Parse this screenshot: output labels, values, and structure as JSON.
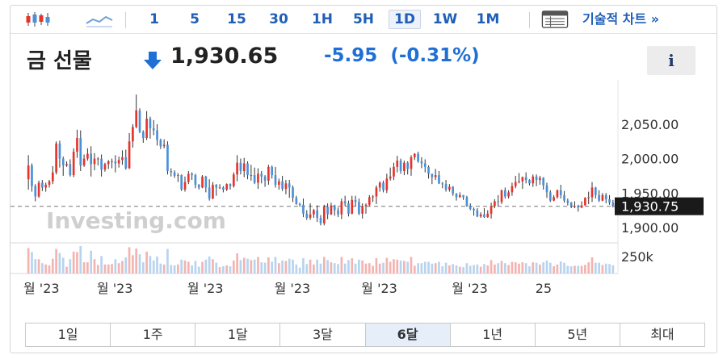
{
  "toolbar": {
    "chart_icon": "candlestick-icon",
    "area_icon": "area-chart-icon",
    "timeframes": [
      {
        "label": "1",
        "active": false
      },
      {
        "label": "5",
        "active": false
      },
      {
        "label": "15",
        "active": false
      },
      {
        "label": "30",
        "active": false
      },
      {
        "label": "1H",
        "active": false
      },
      {
        "label": "5H",
        "active": false
      },
      {
        "label": "1D",
        "active": true
      },
      {
        "label": "1W",
        "active": false
      },
      {
        "label": "1M",
        "active": false
      }
    ],
    "tech_icon": "table-icon",
    "tech_label": "기술적 차트 »"
  },
  "header": {
    "instrument": "금 선물",
    "price": "1,930.65",
    "change": "-5.95",
    "change_pct": "(-0.31%)",
    "info_label": "i"
  },
  "colors": {
    "up": "#e8332a",
    "down": "#4a90d9",
    "wick": "#333333",
    "text": "#333333",
    "accent": "#1f5fb8"
  },
  "chart_data": {
    "type": "candlestick",
    "watermark": "Investing.com",
    "y_ticks": [
      "2,050.00",
      "2,000.00",
      "1,950.00",
      "1,900.00"
    ],
    "y_tick_values": [
      2050,
      2000,
      1950,
      1900
    ],
    "ylim": [
      1880,
      2105
    ],
    "current_label": "1,930.75",
    "current_value": 1930.75,
    "volume_tick": "250k",
    "x_tick_labels": [
      "월 '23",
      "월 '23",
      "월 '23",
      "월 '23",
      "월 '23",
      "월 '23",
      "25"
    ],
    "x_tick_index": [
      0,
      22,
      48,
      73,
      98,
      124,
      148
    ],
    "candles": [
      [
        1970.0,
        1990.0,
        1955.0,
        2005.0
      ],
      [
        1990.0,
        1960.0,
        1952.0,
        1993.0
      ],
      [
        1960.0,
        1945.0,
        1938.0,
        1963.0
      ],
      [
        1945.0,
        1965.0,
        1943.0,
        1968.0
      ],
      [
        1965.0,
        1958.0,
        1953.0,
        1969.0
      ],
      [
        1958.0,
        1962.0,
        1952.0,
        1965.0
      ],
      [
        1962.0,
        1967.0,
        1958.0,
        1969.0
      ],
      [
        1967.0,
        1980.0,
        1963.0,
        1989.0
      ],
      [
        1980.0,
        2022.0,
        1977.0,
        2025.0
      ],
      [
        2022.0,
        2000.0,
        1987.0,
        2026.0
      ],
      [
        2000.0,
        1990.0,
        1975.0,
        2003.0
      ],
      [
        1990.0,
        1992.0,
        1988.0,
        1996.0
      ],
      [
        1992.0,
        1976.0,
        1974.0,
        1999.0
      ],
      [
        1976.0,
        2010.0,
        1973.0,
        2015.0
      ],
      [
        2010.0,
        2030.0,
        2001.0,
        2042.0
      ],
      [
        2030.0,
        1990.0,
        1982.0,
        2041.0
      ],
      [
        1990.0,
        2000.0,
        1988.0,
        2006.0
      ],
      [
        2000.0,
        2007.0,
        1997.0,
        2015.0
      ],
      [
        2007.0,
        1992.0,
        1974.0,
        2018.0
      ],
      [
        1992.0,
        2000.0,
        1983.0,
        2008.0
      ],
      [
        2000.0,
        2000.0,
        1990.0,
        2002.0
      ],
      [
        2000.0,
        1984.0,
        1974.0,
        2006.0
      ],
      [
        1984.0,
        1992.0,
        1981.0,
        1994.0
      ],
      [
        1992.0,
        1996.0,
        1985.0,
        1998.0
      ],
      [
        1996.0,
        1996.0,
        1986.0,
        2000.0
      ],
      [
        1996.0,
        1993.0,
        1980.0,
        2005.0
      ],
      [
        1993.0,
        1998.0,
        1987.0,
        2003.0
      ],
      [
        1998.0,
        2002.0,
        1991.0,
        2012.0
      ],
      [
        2002.0,
        1986.0,
        1984.0,
        2013.0
      ],
      [
        1986.0,
        2025.0,
        1985.0,
        2037.0
      ],
      [
        2025.0,
        2046.0,
        2016.0,
        2050.0
      ],
      [
        2046.0,
        2070.0,
        2044.0,
        2093.0
      ],
      [
        2070.0,
        2039.0,
        2037.0,
        2073.0
      ],
      [
        2039.0,
        2030.0,
        2023.0,
        2041.0
      ],
      [
        2030.0,
        2058.0,
        2027.0,
        2069.0
      ],
      [
        2058.0,
        2044.0,
        2029.0,
        2061.0
      ],
      [
        2044.0,
        2041.0,
        2034.0,
        2056.0
      ],
      [
        2041.0,
        2027.0,
        2019.0,
        2050.0
      ],
      [
        2027.0,
        2018.0,
        2014.0,
        2029.0
      ],
      [
        2018.0,
        2020.0,
        2015.0,
        2028.0
      ],
      [
        2020.0,
        1982.0,
        1977.0,
        2025.0
      ],
      [
        1982.0,
        1980.0,
        1974.0,
        1986.0
      ],
      [
        1980.0,
        1975.0,
        1972.0,
        1983.0
      ],
      [
        1975.0,
        1976.0,
        1966.0,
        1979.0
      ],
      [
        1976.0,
        1955.0,
        1953.0,
        1977.0
      ],
      [
        1955.0,
        1966.0,
        1952.0,
        1974.0
      ],
      [
        1966.0,
        1978.0,
        1963.0,
        1982.0
      ],
      [
        1978.0,
        1976.0,
        1969.0,
        1980.0
      ],
      [
        1976.0,
        1962.0,
        1957.0,
        1978.0
      ],
      [
        1962.0,
        1958.0,
        1955.0,
        1963.0
      ],
      [
        1958.0,
        1974.0,
        1957.0,
        1976.0
      ],
      [
        1974.0,
        1958.0,
        1951.0,
        1975.0
      ],
      [
        1958.0,
        1942.0,
        1939.0,
        1970.0
      ],
      [
        1942.0,
        1962.0,
        1941.0,
        1966.0
      ],
      [
        1962.0,
        1958.0,
        1946.0,
        1963.0
      ],
      [
        1958.0,
        1958.0,
        1956.0,
        1963.0
      ],
      [
        1958.0,
        1955.0,
        1951.0,
        1960.0
      ],
      [
        1955.0,
        1963.0,
        1953.0,
        1964.0
      ],
      [
        1963.0,
        1960.0,
        1955.0,
        1964.0
      ],
      [
        1960.0,
        1977.0,
        1958.0,
        1980.0
      ],
      [
        1977.0,
        1994.0,
        1967.0,
        2005.0
      ],
      [
        1994.0,
        1982.0,
        1977.0,
        2000.0
      ],
      [
        1982.0,
        1993.0,
        1973.0,
        2001.0
      ],
      [
        1993.0,
        1976.0,
        1970.0,
        1996.0
      ],
      [
        1976.0,
        1976.0,
        1968.0,
        1991.0
      ],
      [
        1976.0,
        1965.0,
        1963.0,
        1987.0
      ],
      [
        1965.0,
        1978.0,
        1956.0,
        1986.0
      ],
      [
        1978.0,
        1974.0,
        1964.0,
        1982.0
      ],
      [
        1974.0,
        1968.0,
        1959.0,
        1976.0
      ],
      [
        1968.0,
        1988.0,
        1962.0,
        1991.0
      ],
      [
        1988.0,
        1976.0,
        1971.0,
        1990.0
      ],
      [
        1976.0,
        1962.0,
        1958.0,
        1988.0
      ],
      [
        1962.0,
        1967.0,
        1955.0,
        1971.0
      ],
      [
        1967.0,
        1956.0,
        1953.0,
        1975.0
      ],
      [
        1956.0,
        1964.0,
        1948.0,
        1969.0
      ],
      [
        1964.0,
        1958.0,
        1943.0,
        1969.0
      ],
      [
        1958.0,
        1943.0,
        1937.0,
        1961.0
      ],
      [
        1943.0,
        1934.0,
        1933.0,
        1946.0
      ],
      [
        1934.0,
        1933.0,
        1930.0,
        1936.0
      ],
      [
        1933.0,
        1920.0,
        1915.0,
        1942.0
      ],
      [
        1920.0,
        1914.0,
        1911.0,
        1925.0
      ],
      [
        1914.0,
        1919.0,
        1911.0,
        1935.0
      ],
      [
        1919.0,
        1925.0,
        1914.0,
        1927.0
      ],
      [
        1925.0,
        1914.0,
        1908.0,
        1932.0
      ],
      [
        1914.0,
        1906.0,
        1903.0,
        1918.0
      ],
      [
        1906.0,
        1930.0,
        1903.0,
        1933.0
      ],
      [
        1930.0,
        1919.0,
        1912.0,
        1935.0
      ],
      [
        1919.0,
        1932.0,
        1918.0,
        1936.0
      ],
      [
        1932.0,
        1925.0,
        1917.0,
        1933.0
      ],
      [
        1925.0,
        1919.0,
        1915.0,
        1929.0
      ],
      [
        1919.0,
        1938.0,
        1912.0,
        1942.0
      ],
      [
        1938.0,
        1935.0,
        1931.0,
        1946.0
      ],
      [
        1935.0,
        1920.0,
        1916.0,
        1939.0
      ],
      [
        1920.0,
        1940.0,
        1919.0,
        1946.0
      ],
      [
        1940.0,
        1937.0,
        1931.0,
        1946.0
      ],
      [
        1937.0,
        1920.0,
        1918.0,
        1942.0
      ],
      [
        1920.0,
        1931.0,
        1913.0,
        1935.0
      ],
      [
        1931.0,
        1933.0,
        1920.0,
        1935.0
      ],
      [
        1933.0,
        1944.0,
        1931.0,
        1947.0
      ],
      [
        1944.0,
        1945.0,
        1937.0,
        1947.0
      ],
      [
        1945.0,
        1958.0,
        1934.0,
        1961.0
      ],
      [
        1958.0,
        1965.0,
        1952.0,
        1967.0
      ],
      [
        1965.0,
        1954.0,
        1951.0,
        1968.0
      ],
      [
        1954.0,
        1971.0,
        1950.0,
        1978.0
      ],
      [
        1971.0,
        1974.0,
        1968.0,
        1987.0
      ],
      [
        1974.0,
        1988.0,
        1969.0,
        1994.0
      ],
      [
        1988.0,
        1997.0,
        1980.0,
        2004.0
      ],
      [
        1997.0,
        1982.0,
        1978.0,
        2000.0
      ],
      [
        1982.0,
        1994.0,
        1976.0,
        1997.0
      ],
      [
        1994.0,
        1985.0,
        1977.0,
        1996.0
      ],
      [
        1985.0,
        2002.0,
        1975.0,
        2005.0
      ],
      [
        2002.0,
        2007.0,
        1998.0,
        2008.0
      ],
      [
        2007.0,
        1996.0,
        1994.0,
        2010.0
      ],
      [
        1996.0,
        1993.0,
        1986.0,
        2002.0
      ],
      [
        1993.0,
        1988.0,
        1980.0,
        1999.0
      ],
      [
        1988.0,
        1978.0,
        1971.0,
        1990.0
      ],
      [
        1978.0,
        1973.0,
        1963.0,
        1978.0
      ],
      [
        1973.0,
        1976.0,
        1969.0,
        1985.0
      ],
      [
        1976.0,
        1964.0,
        1963.0,
        1982.0
      ],
      [
        1964.0,
        1963.0,
        1957.0,
        1966.0
      ],
      [
        1963.0,
        1955.0,
        1952.0,
        1969.0
      ],
      [
        1955.0,
        1959.0,
        1952.0,
        1963.0
      ],
      [
        1959.0,
        1949.0,
        1946.0,
        1960.0
      ],
      [
        1949.0,
        1944.0,
        1939.0,
        1950.0
      ],
      [
        1944.0,
        1947.0,
        1943.0,
        1951.0
      ],
      [
        1947.0,
        1944.0,
        1940.0,
        1947.0
      ],
      [
        1944.0,
        1931.0,
        1930.0,
        1946.0
      ],
      [
        1931.0,
        1927.0,
        1925.0,
        1935.0
      ],
      [
        1927.0,
        1925.0,
        1917.0,
        1929.0
      ],
      [
        1925.0,
        1916.0,
        1915.0,
        1928.0
      ],
      [
        1916.0,
        1919.0,
        1914.0,
        1922.0
      ],
      [
        1919.0,
        1915.0,
        1914.0,
        1928.0
      ],
      [
        1915.0,
        1920.0,
        1914.0,
        1925.0
      ],
      [
        1920.0,
        1931.0,
        1913.0,
        1936.0
      ],
      [
        1931.0,
        1938.0,
        1928.0,
        1941.0
      ],
      [
        1938.0,
        1937.0,
        1931.0,
        1947.0
      ],
      [
        1937.0,
        1954.0,
        1934.0,
        1955.0
      ],
      [
        1954.0,
        1945.0,
        1942.0,
        1958.0
      ],
      [
        1945.0,
        1951.0,
        1942.0,
        1954.0
      ],
      [
        1951.0,
        1960.0,
        1946.0,
        1965.0
      ],
      [
        1960.0,
        1966.0,
        1957.0,
        1975.0
      ],
      [
        1966.0,
        1967.0,
        1964.0,
        1979.0
      ],
      [
        1967.0,
        1973.0,
        1956.0,
        1974.0
      ],
      [
        1973.0,
        1969.0,
        1964.0,
        1980.0
      ],
      [
        1969.0,
        1964.0,
        1961.0,
        1970.0
      ],
      [
        1964.0,
        1974.0,
        1959.0,
        1977.0
      ],
      [
        1974.0,
        1969.0,
        1960.0,
        1977.0
      ],
      [
        1969.0,
        1972.0,
        1962.0,
        1975.0
      ],
      [
        1972.0,
        1961.0,
        1955.0,
        1973.0
      ],
      [
        1961.0,
        1951.0,
        1943.0,
        1965.0
      ],
      [
        1951.0,
        1939.0,
        1937.0,
        1954.0
      ],
      [
        1939.0,
        1944.0,
        1938.0,
        1947.0
      ],
      [
        1944.0,
        1954.0,
        1942.0,
        1955.0
      ],
      [
        1954.0,
        1947.0,
        1942.0,
        1962.0
      ],
      [
        1947.0,
        1939.0,
        1936.0,
        1953.0
      ],
      [
        1939.0,
        1936.0,
        1932.0,
        1942.0
      ],
      [
        1936.0,
        1931.0,
        1928.0,
        1937.0
      ],
      [
        1931.0,
        1931.0,
        1928.0,
        1938.0
      ],
      [
        1931.0,
        1929.0,
        1923.0,
        1933.0
      ],
      [
        1929.0,
        1932.0,
        1928.0,
        1938.0
      ],
      [
        1932.0,
        1943.0,
        1932.0,
        1944.0
      ],
      [
        1943.0,
        1944.0,
        1934.0,
        1952.0
      ],
      [
        1944.0,
        1958.0,
        1937.0,
        1966.0
      ],
      [
        1958.0,
        1947.0,
        1942.0,
        1959.0
      ],
      [
        1947.0,
        1939.0,
        1937.0,
        1954.0
      ],
      [
        1939.0,
        1947.0,
        1938.0,
        1950.0
      ],
      [
        1947.0,
        1941.0,
        1935.0,
        1950.0
      ],
      [
        1941.0,
        1936.0,
        1933.0,
        1947.0
      ],
      [
        1936.0,
        1931.0,
        1929.0,
        1940.0
      ]
    ]
  },
  "ranges": [
    {
      "label": "1일",
      "active": false
    },
    {
      "label": "1주",
      "active": false
    },
    {
      "label": "1달",
      "active": false
    },
    {
      "label": "3달",
      "active": false
    },
    {
      "label": "6달",
      "active": true
    },
    {
      "label": "1년",
      "active": false
    },
    {
      "label": "5년",
      "active": false
    },
    {
      "label": "최대",
      "active": false
    }
  ]
}
